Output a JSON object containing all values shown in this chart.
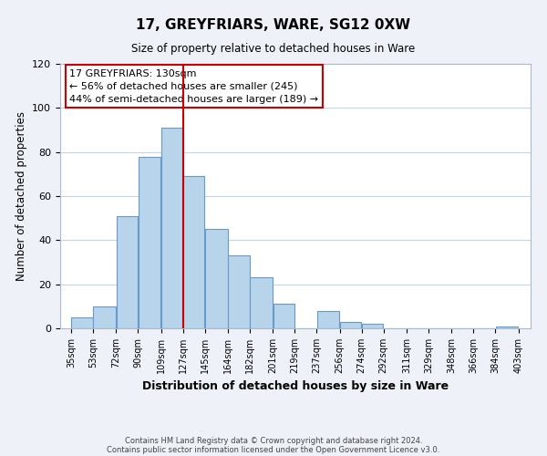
{
  "title": "17, GREYFRIARS, WARE, SG12 0XW",
  "subtitle": "Size of property relative to detached houses in Ware",
  "xlabel": "Distribution of detached houses by size in Ware",
  "ylabel": "Number of detached properties",
  "bar_left_edges": [
    35,
    53,
    72,
    90,
    109,
    127,
    145,
    164,
    182,
    201,
    219,
    237,
    256,
    274,
    292,
    311,
    329,
    348,
    366,
    384
  ],
  "bar_heights": [
    5,
    10,
    51,
    78,
    91,
    69,
    45,
    33,
    23,
    11,
    0,
    8,
    3,
    2,
    0,
    0,
    0,
    0,
    0,
    1
  ],
  "bar_widths": [
    18,
    19,
    18,
    19,
    18,
    18,
    19,
    18,
    19,
    18,
    18,
    19,
    18,
    18,
    19,
    18,
    19,
    18,
    18,
    19
  ],
  "bar_color": "#b8d4ea",
  "bar_edge_color": "#6699cc",
  "tick_labels": [
    "35sqm",
    "53sqm",
    "72sqm",
    "90sqm",
    "109sqm",
    "127sqm",
    "145sqm",
    "164sqm",
    "182sqm",
    "201sqm",
    "219sqm",
    "237sqm",
    "256sqm",
    "274sqm",
    "292sqm",
    "311sqm",
    "329sqm",
    "348sqm",
    "366sqm",
    "384sqm",
    "403sqm"
  ],
  "tick_positions": [
    35,
    53,
    72,
    90,
    109,
    127,
    145,
    164,
    182,
    201,
    219,
    237,
    256,
    274,
    292,
    311,
    329,
    348,
    366,
    384,
    403
  ],
  "vline_x": 127,
  "vline_color": "#cc0000",
  "ylim": [
    0,
    120
  ],
  "yticks": [
    0,
    20,
    40,
    60,
    80,
    100,
    120
  ],
  "annotation_title": "17 GREYFRIARS: 130sqm",
  "annotation_line1": "← 56% of detached houses are smaller (245)",
  "annotation_line2": "44% of semi-detached houses are larger (189) →",
  "footer1": "Contains HM Land Registry data © Crown copyright and database right 2024.",
  "footer2": "Contains public sector information licensed under the Open Government Licence v3.0.",
  "background_color": "#eef1f7",
  "plot_background": "#ffffff",
  "grid_color": "#c8d4e4"
}
